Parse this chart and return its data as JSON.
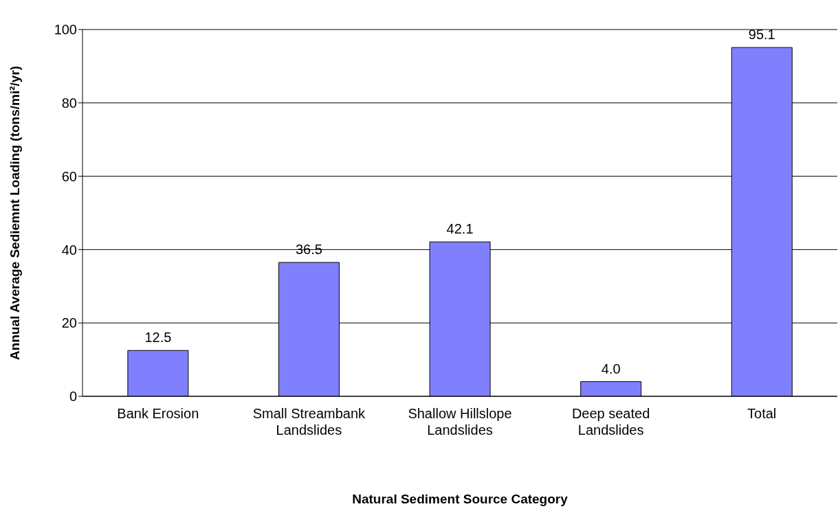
{
  "chart_data": {
    "type": "bar",
    "xlabel": "Natural Sediment Source Category",
    "ylabel": "Annual Average Sediemnt Loading (tons/mi²/yr)",
    "categories": [
      "Bank Erosion",
      "Small Streambank Landslides",
      "Shallow Hillslope Landslides",
      "Deep seated Landslides",
      "Total"
    ],
    "values": [
      12.5,
      36.5,
      42.1,
      4.0,
      95.1
    ],
    "value_labels": [
      "12.5",
      "36.5",
      "42.1",
      "4.0",
      "95.1"
    ],
    "color": "#8080ff",
    "ylim": [
      0,
      100
    ],
    "yticks": [
      0,
      20,
      40,
      60,
      80,
      100
    ],
    "grid": "y"
  }
}
